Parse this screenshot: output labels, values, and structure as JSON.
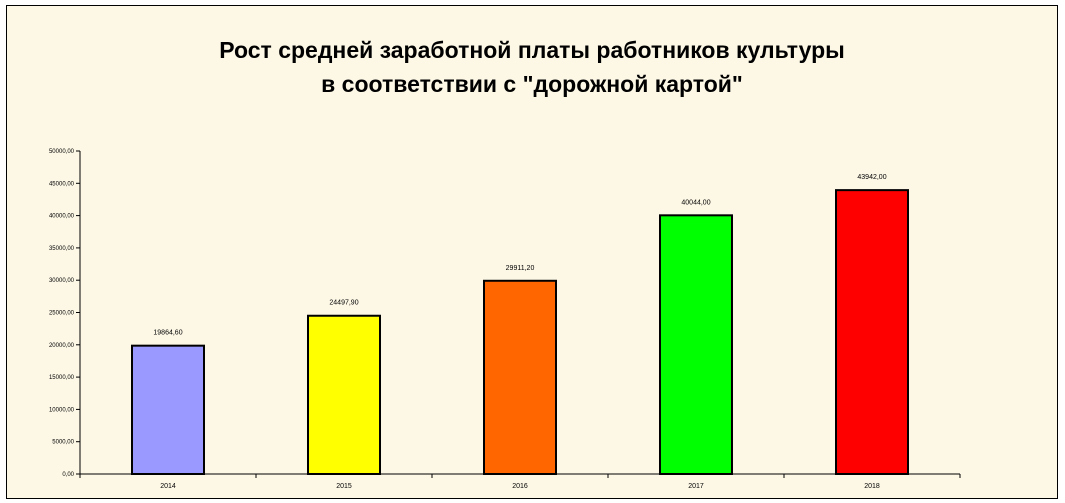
{
  "chart_data": {
    "type": "bar",
    "title_line1": "Рост средней заработной платы работников культуры",
    "title_line2": "в соответствии с \"дорожной картой\"",
    "categories": [
      "2014",
      "2015",
      "2016",
      "2017",
      "2018"
    ],
    "values": [
      19864.6,
      24497.9,
      29911.2,
      40044.0,
      43942.0
    ],
    "data_labels": [
      "19864,60",
      "24497,90",
      "29911,20",
      "40044,00",
      "43942,00"
    ],
    "bar_colors": [
      "#9999ff",
      "#ffff00",
      "#ff6600",
      "#00ff00",
      "#ff0000"
    ],
    "ylim": [
      0,
      50000
    ],
    "yticks": [
      0,
      5000,
      10000,
      15000,
      20000,
      25000,
      30000,
      35000,
      40000,
      45000,
      50000
    ],
    "ytick_labels": [
      "0,00",
      "5000,00",
      "10000,00",
      "15000,00",
      "20000,00",
      "25000,00",
      "30000,00",
      "35000,00",
      "40000,00",
      "45000,00",
      "50000,00"
    ],
    "xlabel": "",
    "ylabel": "",
    "grid": false,
    "legend": "none"
  }
}
